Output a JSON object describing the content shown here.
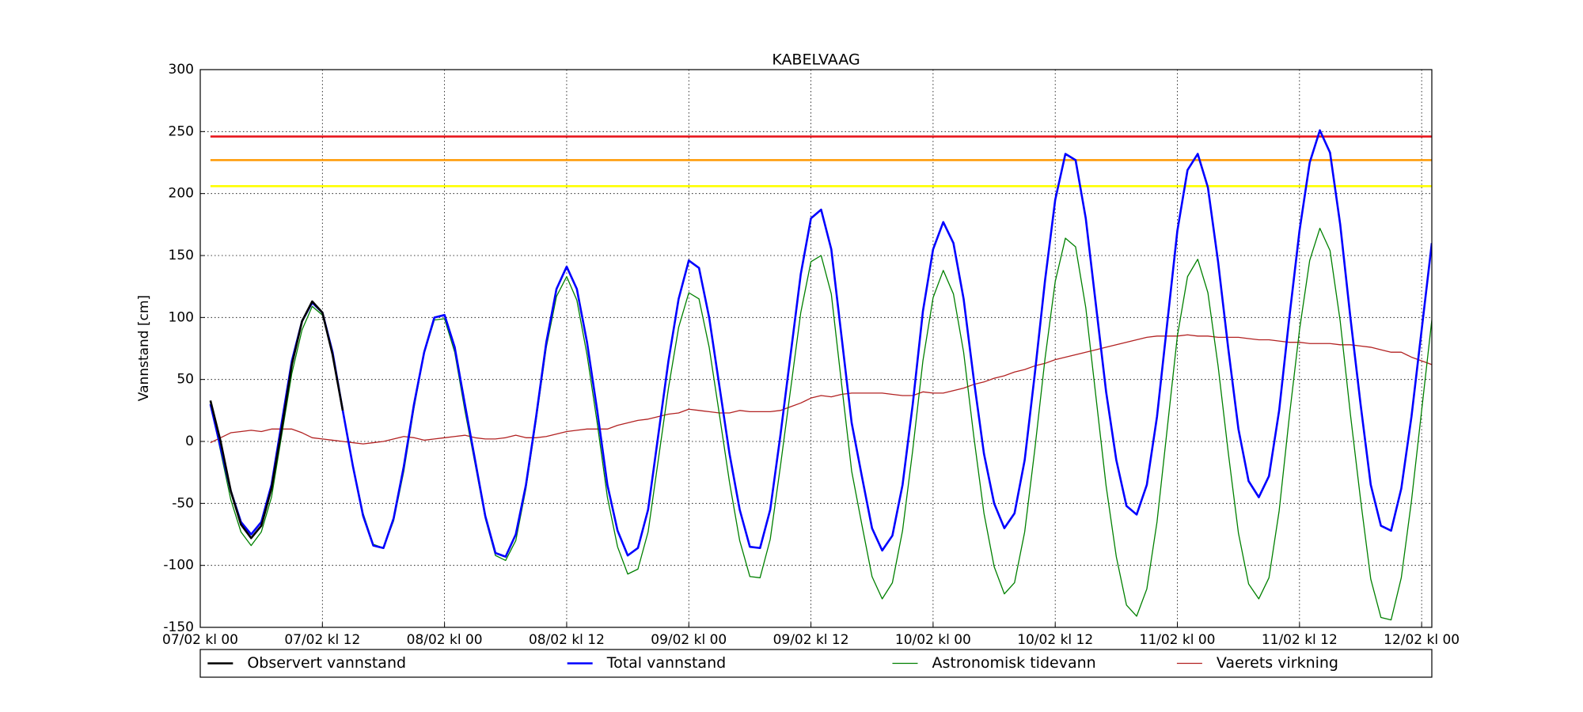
{
  "chart_data": {
    "type": "line",
    "title": "KABELVAAG",
    "y_label": "Vannstand [cm]",
    "xlim": [
      0,
      121
    ],
    "ylim": [
      -150,
      300
    ],
    "xticks": [
      {
        "value": 0,
        "label": "07/02 kl 00"
      },
      {
        "value": 12,
        "label": "07/02 kl 12"
      },
      {
        "value": 24,
        "label": "08/02 kl 00"
      },
      {
        "value": 36,
        "label": "08/02 kl 12"
      },
      {
        "value": 48,
        "label": "09/02 kl 00"
      },
      {
        "value": 60,
        "label": "09/02 kl 12"
      },
      {
        "value": 72,
        "label": "10/02 kl 00"
      },
      {
        "value": 84,
        "label": "10/02 kl 12"
      },
      {
        "value": 96,
        "label": "11/02 kl 00"
      },
      {
        "value": 108,
        "label": "11/02 kl 12"
      },
      {
        "value": 120,
        "label": "12/02 kl 00"
      }
    ],
    "yticks": [
      -150,
      -100,
      -50,
      0,
      50,
      100,
      150,
      200,
      250,
      300
    ],
    "grid": true,
    "legend": "bottom",
    "reference_lines": [
      {
        "value": 246,
        "color": "#e8151b"
      },
      {
        "value": 227,
        "color": "#ff9900"
      },
      {
        "value": 206,
        "color": "#ffff00"
      }
    ],
    "x": [
      1,
      2,
      3,
      4,
      5,
      6,
      7,
      8,
      9,
      10,
      11,
      12,
      13,
      14,
      15,
      16,
      17,
      18,
      19,
      20,
      21,
      22,
      23,
      24,
      25,
      26,
      27,
      28,
      29,
      30,
      31,
      32,
      33,
      34,
      35,
      36,
      37,
      38,
      39,
      40,
      41,
      42,
      43,
      44,
      45,
      46,
      47,
      48,
      49,
      50,
      51,
      52,
      53,
      54,
      55,
      56,
      57,
      58,
      59,
      60,
      61,
      62,
      63,
      64,
      65,
      66,
      67,
      68,
      69,
      70,
      71,
      72,
      73,
      74,
      75,
      76,
      77,
      78,
      79,
      80,
      81,
      82,
      83,
      84,
      85,
      86,
      87,
      88,
      89,
      90,
      91,
      92,
      93,
      94,
      95,
      96,
      97,
      98,
      99,
      100,
      101,
      102,
      103,
      104,
      105,
      106,
      107,
      108,
      109,
      110,
      111,
      112,
      113,
      114,
      115,
      116,
      117,
      118,
      119,
      120,
      121
    ],
    "series": [
      {
        "name": "Observert vannstand",
        "color": "#000000",
        "width": 2.6,
        "x": [
          1,
          2,
          3,
          4,
          5,
          6,
          7,
          8,
          9,
          10,
          11,
          12,
          13,
          14
        ],
        "values": [
          33,
          0,
          -40,
          -67,
          -78,
          -68,
          -38,
          10,
          62,
          97,
          113,
          104,
          70,
          25
        ]
      },
      {
        "name": "Total vannstand",
        "color": "#0000ff",
        "width": 2.6,
        "values": [
          30,
          -5,
          -40,
          -65,
          -75,
          -65,
          -35,
          15,
          65,
          97,
          112,
          104,
          72,
          25,
          -20,
          -60,
          -84,
          -86,
          -62,
          -20,
          30,
          72,
          100,
          102,
          76,
          30,
          -15,
          -60,
          -90,
          -93,
          -75,
          -35,
          20,
          80,
          123,
          141,
          123,
          80,
          25,
          -35,
          -72,
          -92,
          -86,
          -55,
          5,
          65,
          115,
          146,
          140,
          100,
          45,
          -10,
          -55,
          -85,
          -86,
          -55,
          5,
          70,
          135,
          180,
          187,
          155,
          85,
          15,
          -28,
          -70,
          -88,
          -76,
          -35,
          30,
          105,
          155,
          177,
          160,
          115,
          50,
          -10,
          -50,
          -70,
          -58,
          -15,
          55,
          130,
          195,
          232,
          227,
          180,
          110,
          40,
          -15,
          -52,
          -59,
          -35,
          20,
          95,
          170,
          219,
          232,
          205,
          145,
          75,
          10,
          -32,
          -45,
          -28,
          25,
          100,
          170,
          225,
          251,
          233,
          175,
          100,
          30,
          -35,
          -68,
          -72,
          -38,
          20,
          90,
          160
        ]
      },
      {
        "name": "Astronomisk tidevann",
        "color": "#008000",
        "width": 1.3,
        "values": [
          31,
          -8,
          -47,
          -73,
          -84,
          -73,
          -45,
          5,
          55,
          90,
          109,
          102,
          71,
          25,
          -19,
          -58,
          -83,
          -86,
          -64,
          -24,
          27,
          71,
          98,
          99,
          72,
          25,
          -18,
          -62,
          -92,
          -96,
          -80,
          -38,
          17,
          76,
          117,
          133,
          114,
          70,
          15,
          -45,
          -85,
          -107,
          -103,
          -73,
          -15,
          43,
          92,
          120,
          115,
          76,
          22,
          -33,
          -80,
          -109,
          -110,
          -79,
          -20,
          42,
          104,
          145,
          150,
          119,
          47,
          -24,
          -67,
          -109,
          -127,
          -114,
          -72,
          -7,
          65,
          116,
          138,
          119,
          72,
          4,
          -58,
          -101,
          -123,
          -114,
          -73,
          -6,
          67,
          129,
          164,
          157,
          108,
          36,
          -36,
          -93,
          -132,
          -141,
          -119,
          -65,
          10,
          85,
          133,
          147,
          120,
          61,
          -9,
          -74,
          -115,
          -127,
          -110,
          -56,
          20,
          90,
          146,
          172,
          154,
          97,
          22,
          -47,
          -111,
          -142,
          -144,
          -110,
          -48,
          25,
          98
        ]
      },
      {
        "name": "Vaerets virkning",
        "color": "#b22222",
        "width": 1.3,
        "values": [
          -1,
          3,
          7,
          8,
          9,
          8,
          10,
          10,
          10,
          7,
          3,
          2,
          1,
          0,
          -1,
          -2,
          -1,
          0,
          2,
          4,
          3,
          1,
          2,
          3,
          4,
          5,
          3,
          2,
          2,
          3,
          5,
          3,
          3,
          4,
          6,
          8,
          9,
          10,
          10,
          10,
          13,
          15,
          17,
          18,
          20,
          22,
          23,
          26,
          25,
          24,
          23,
          23,
          25,
          24,
          24,
          24,
          25,
          28,
          31,
          35,
          37,
          36,
          38,
          39,
          39,
          39,
          39,
          38,
          37,
          37,
          40,
          39,
          39,
          41,
          43,
          46,
          48,
          51,
          53,
          56,
          58,
          61,
          63,
          66,
          68,
          70,
          72,
          74,
          76,
          78,
          80,
          82,
          84,
          85,
          85,
          85,
          86,
          85,
          85,
          84,
          84,
          84,
          83,
          82,
          82,
          81,
          80,
          80,
          79,
          79,
          79,
          78,
          78,
          77,
          76,
          74,
          72,
          72,
          68,
          65,
          62
        ]
      }
    ]
  }
}
